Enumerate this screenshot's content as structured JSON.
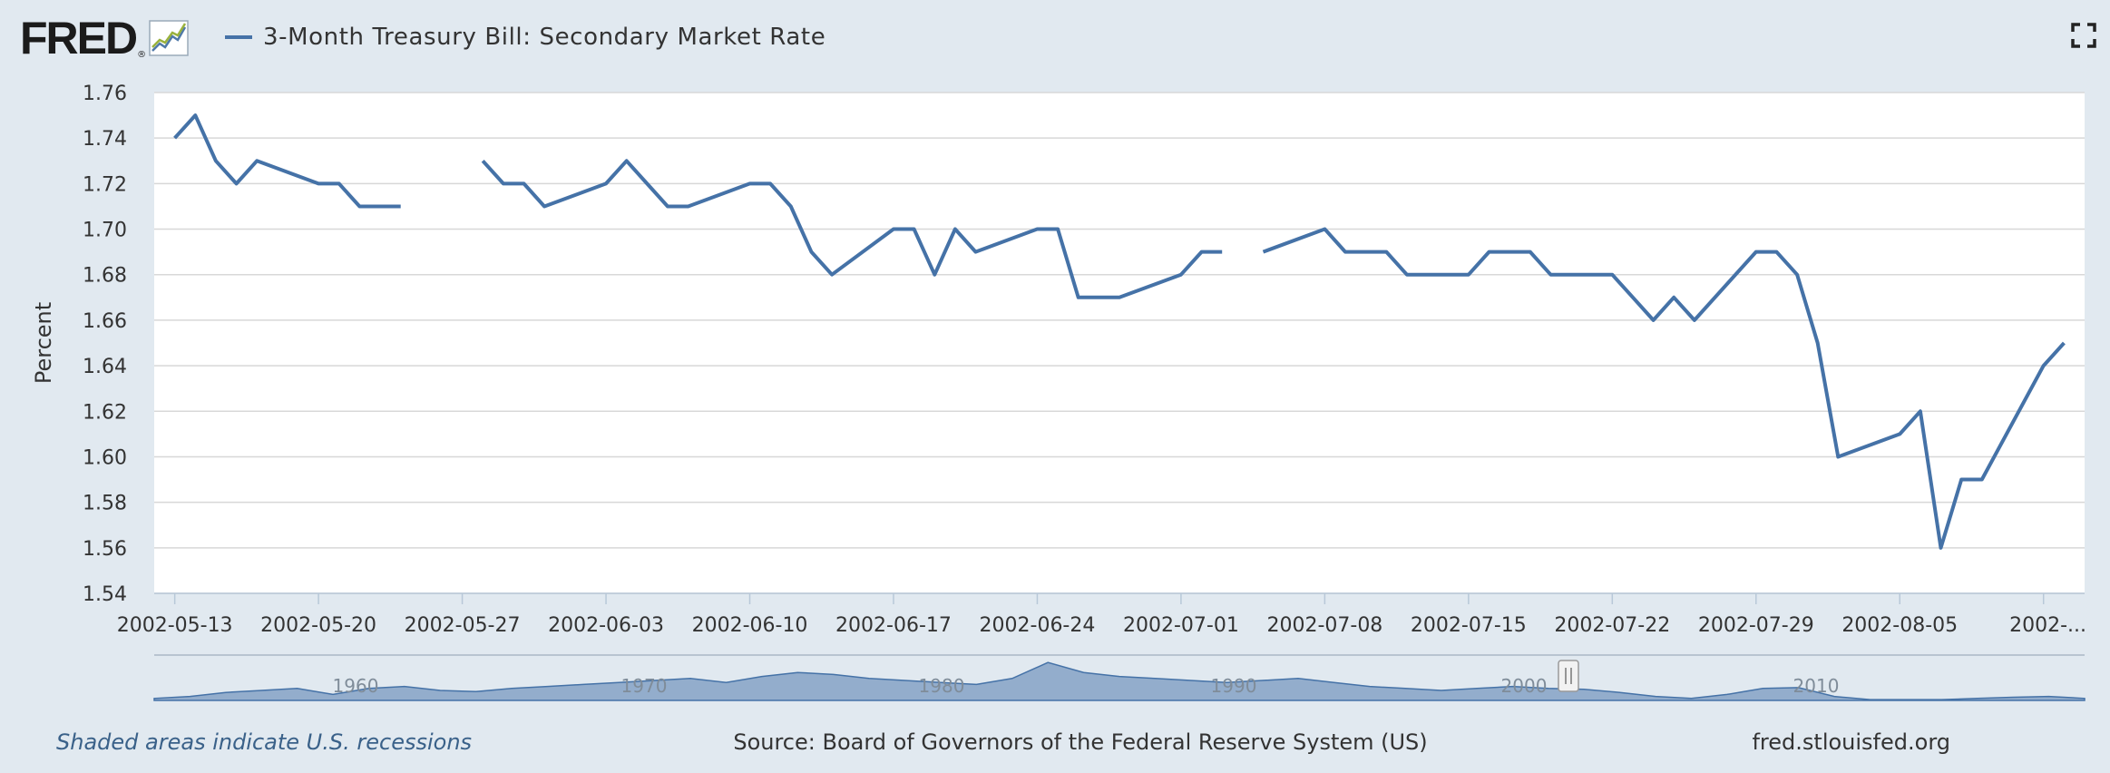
{
  "header": {
    "logo_text": "FRED",
    "logo_mark": "®",
    "legend_label": "3-Month Treasury Bill: Secondary Market Rate",
    "legend_color": "#4572a7",
    "fullscreen_icon": "fullscreen-icon"
  },
  "footer": {
    "recession_note": "Shaded areas indicate U.S. recessions",
    "source": "Source: Board of Governors of the Federal Reserve System (US)",
    "site": "fred.stlouisfed.org"
  },
  "colors": {
    "background": "#e1e9f0",
    "plot_background": "#ffffff",
    "series": "#4572a7",
    "navigator_fill": "#4572a7"
  },
  "chart_data": {
    "type": "line",
    "title": "3-Month Treasury Bill: Secondary Market Rate",
    "xlabel": "",
    "ylabel": "Percent",
    "ylim": [
      1.54,
      1.76
    ],
    "yticks": [
      "1.54",
      "1.56",
      "1.58",
      "1.60",
      "1.62",
      "1.64",
      "1.66",
      "1.68",
      "1.70",
      "1.72",
      "1.74",
      "1.76"
    ],
    "xlim": [
      "2002-05-12",
      "2002-08-14"
    ],
    "xticks": [
      "2002-05-13",
      "2002-05-20",
      "2002-05-27",
      "2002-06-03",
      "2002-06-10",
      "2002-06-17",
      "2002-06-24",
      "2002-07-01",
      "2002-07-08",
      "2002-07-15",
      "2002-07-22",
      "2002-07-29",
      "2002-08-05",
      "2002-..."
    ],
    "grid": true,
    "legend": "top-left",
    "series": [
      {
        "name": "3-Month Treasury Bill: Secondary Market Rate",
        "x": [
          "2002-05-13",
          "2002-05-14",
          "2002-05-15",
          "2002-05-16",
          "2002-05-17",
          "2002-05-20",
          "2002-05-21",
          "2002-05-22",
          "2002-05-23",
          "2002-05-24",
          "2002-05-27",
          "2002-05-28",
          "2002-05-29",
          "2002-05-30",
          "2002-05-31",
          "2002-06-03",
          "2002-06-04",
          "2002-06-05",
          "2002-06-06",
          "2002-06-07",
          "2002-06-10",
          "2002-06-11",
          "2002-06-12",
          "2002-06-13",
          "2002-06-14",
          "2002-06-17",
          "2002-06-18",
          "2002-06-19",
          "2002-06-20",
          "2002-06-21",
          "2002-06-24",
          "2002-06-25",
          "2002-06-26",
          "2002-06-27",
          "2002-06-28",
          "2002-07-01",
          "2002-07-02",
          "2002-07-03",
          "2002-07-04",
          "2002-07-05",
          "2002-07-08",
          "2002-07-09",
          "2002-07-10",
          "2002-07-11",
          "2002-07-12",
          "2002-07-15",
          "2002-07-16",
          "2002-07-17",
          "2002-07-18",
          "2002-07-19",
          "2002-07-22",
          "2002-07-23",
          "2002-07-24",
          "2002-07-25",
          "2002-07-26",
          "2002-07-29",
          "2002-07-30",
          "2002-07-31",
          "2002-08-01",
          "2002-08-02",
          "2002-08-05",
          "2002-08-06",
          "2002-08-07",
          "2002-08-08",
          "2002-08-09",
          "2002-08-12",
          "2002-08-13"
        ],
        "y": [
          1.74,
          1.75,
          1.73,
          1.72,
          1.73,
          1.72,
          1.72,
          1.71,
          1.71,
          1.71,
          null,
          1.73,
          1.72,
          1.72,
          1.71,
          1.72,
          1.73,
          1.72,
          1.71,
          1.71,
          1.72,
          1.72,
          1.71,
          1.69,
          1.68,
          1.7,
          1.7,
          1.68,
          1.7,
          1.69,
          1.7,
          1.7,
          1.67,
          1.67,
          1.67,
          1.68,
          1.69,
          1.69,
          null,
          1.69,
          1.7,
          1.69,
          1.69,
          1.69,
          1.68,
          1.68,
          1.69,
          1.69,
          1.69,
          1.68,
          1.68,
          1.67,
          1.66,
          1.67,
          1.66,
          1.69,
          1.69,
          1.68,
          1.65,
          1.6,
          1.61,
          1.62,
          1.56,
          1.59,
          1.59,
          1.64,
          1.65
        ]
      }
    ],
    "navigator": {
      "tick_labels": [
        "1960",
        "1970",
        "1980",
        "1990",
        "2000",
        "2010"
      ]
    }
  }
}
